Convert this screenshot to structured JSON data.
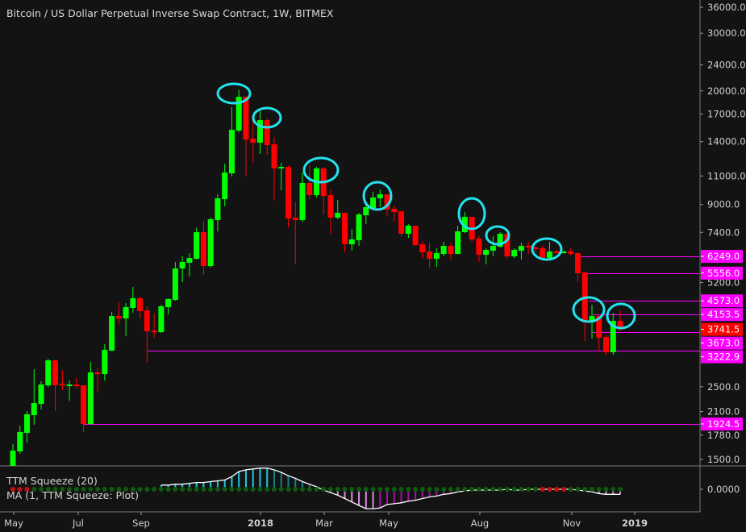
{
  "title": "Bitcoin / US Dollar Perpetual Inverse Swap Contract, 1W, BITMEX",
  "indicator": {
    "name": "TTM Squeeze (20)",
    "ma_label": "MA (1, TTM Squeeze: Plot)",
    "zero_label": "0.0000"
  },
  "colors": {
    "background": "#131313",
    "up": "#00ff00",
    "down": "#ff0000",
    "level_line": "#ff00ff",
    "last_price": "#ff0000",
    "annotation": "#22e3ee",
    "hist_pos_rising": "#1fc8dc",
    "hist_pos_falling": "#13808c",
    "hist_neg_falling": "#e08ae0",
    "hist_neg_rising": "#a312a3",
    "squeeze_off": "#0d5c0d",
    "squeeze_on": "#c41010"
  },
  "chart_data": {
    "type": "candlestick",
    "title": "Bitcoin / US Dollar Perpetual Inverse Swap Contract, 1W, BITMEX",
    "y_scale": "log",
    "ylim": [
      1450,
      36000
    ],
    "grid": false,
    "x_tick_labels": [
      "May",
      "Jul",
      "Sep",
      "2018",
      "Mar",
      "May",
      "Aug",
      "Nov",
      "2019"
    ],
    "y_tick_labels": [
      "36000.0",
      "30000.0",
      "24000.0",
      "20000.0",
      "17000.0",
      "14000.0",
      "11000.0",
      "9000.0",
      "7400.0",
      "5200.0",
      "2500.0",
      "2100.0",
      "1780.0",
      "1500.0"
    ],
    "ohlc": [
      [
        1420,
        1670,
        1400,
        1596
      ],
      [
        1587,
        1903,
        1560,
        1819
      ],
      [
        1808,
        2107,
        1689,
        2060
      ],
      [
        2048,
        2828,
        1914,
        2229
      ],
      [
        2217,
        2597,
        2131,
        2540
      ],
      [
        2525,
        3044,
        2497,
        3010
      ],
      [
        3010,
        3020,
        2107,
        2525
      ],
      [
        2554,
        2812,
        2441,
        2525
      ],
      [
        2511,
        2612,
        2268,
        2540
      ],
      [
        2540,
        2657,
        2483,
        2511
      ],
      [
        2525,
        2525,
        1819,
        1925
      ],
      [
        1925,
        2976,
        1914,
        2765
      ],
      [
        2765,
        2844,
        2400,
        2734
      ],
      [
        2734,
        3371,
        2612,
        3240
      ],
      [
        3222,
        4230,
        3222,
        4111
      ],
      [
        4111,
        4527,
        3884,
        4042
      ],
      [
        4042,
        4500,
        3568,
        4374
      ],
      [
        4350,
        5041,
        4205,
        4657
      ],
      [
        4657,
        4710,
        4041,
        4253
      ],
      [
        4277,
        4400,
        2959,
        3691
      ],
      [
        3712,
        4181,
        3528,
        3670
      ],
      [
        3670,
        4450,
        3650,
        4400
      ],
      [
        4375,
        4657,
        4157,
        4630
      ],
      [
        4604,
        6009,
        4578,
        5742
      ],
      [
        5742,
        6251,
        5215,
        6009
      ],
      [
        5975,
        6393,
        5426,
        6181
      ],
      [
        6146,
        7652,
        6111,
        7410
      ],
      [
        7410,
        8022,
        5487,
        5841
      ],
      [
        5841,
        8206,
        5775,
        8113
      ],
      [
        8066,
        9671,
        7452,
        9400
      ],
      [
        9348,
        11994,
        8882,
        11270
      ],
      [
        11206,
        17832,
        10955,
        15216
      ],
      [
        15130,
        20199,
        14950,
        19195
      ],
      [
        19195,
        19304,
        10955,
        14216
      ],
      [
        14297,
        16850,
        12062,
        13897
      ],
      [
        13897,
        17532,
        12841,
        16287
      ],
      [
        16287,
        16474,
        12767,
        13663
      ],
      [
        13741,
        14460,
        9242,
        11593
      ],
      [
        11593,
        12062,
        9949,
        11725
      ],
      [
        11725,
        11859,
        7667,
        8159
      ],
      [
        8206,
        9138,
        5908,
        8066
      ],
      [
        8066,
        11270,
        7975,
        10470
      ],
      [
        10470,
        11859,
        9348,
        9616
      ],
      [
        9616,
        11725,
        9454,
        11593
      ],
      [
        11593,
        11725,
        8393,
        9562
      ],
      [
        9616,
        9949,
        7326,
        8206
      ],
      [
        8206,
        9294,
        8113,
        8489
      ],
      [
        8489,
        8489,
        6432,
        6806
      ],
      [
        6806,
        7583,
        6505,
        7041
      ],
      [
        7001,
        8489,
        6728,
        8393
      ],
      [
        8346,
        9086,
        7842,
        8833
      ],
      [
        8783,
        9836,
        8683,
        9454
      ],
      [
        9400,
        10004,
        8833,
        9671
      ],
      [
        9671,
        9671,
        8299,
        8683
      ],
      [
        8733,
        8933,
        7977,
        8537
      ],
      [
        8586,
        8586,
        7203,
        7326
      ],
      [
        7326,
        7842,
        7122,
        7754
      ],
      [
        7754,
        7754,
        6728,
        6767
      ],
      [
        6806,
        6962,
        6146,
        6432
      ],
      [
        6468,
        6883,
        5775,
        6146
      ],
      [
        6146,
        6616,
        5808,
        6393
      ],
      [
        6357,
        6923,
        6251,
        6730
      ],
      [
        6730,
        6883,
        6111,
        6357
      ],
      [
        6357,
        7754,
        6357,
        7452
      ],
      [
        7410,
        8537,
        7368,
        8252
      ],
      [
        8252,
        8252,
        6923,
        7041
      ],
      [
        7081,
        7244,
        6009,
        6323
      ],
      [
        6323,
        6616,
        5908,
        6542
      ],
      [
        6505,
        7203,
        6251,
        6730
      ],
      [
        6692,
        7410,
        6654,
        7326
      ],
      [
        7326,
        7326,
        6146,
        6251
      ],
      [
        6251,
        6616,
        6181,
        6542
      ],
      [
        6505,
        6883,
        6111,
        6730
      ],
      [
        6730,
        6923,
        6357,
        6654
      ],
      [
        6654,
        6730,
        6432,
        6579
      ],
      [
        6616,
        6730,
        6077,
        6181
      ],
      [
        6181,
        6923,
        6146,
        6468
      ],
      [
        6468,
        6542,
        6393,
        6432
      ],
      [
        6432,
        6505,
        6393,
        6468
      ],
      [
        6468,
        6616,
        6287,
        6357
      ],
      [
        6393,
        6432,
        5215,
        5550
      ],
      [
        5581,
        5620,
        3449,
        3929
      ],
      [
        3929,
        4450,
        3508,
        4111
      ],
      [
        4111,
        4157,
        3222,
        3528
      ],
      [
        3548,
        3608,
        3132,
        3186
      ],
      [
        3186,
        4205,
        3132,
        3973
      ],
      [
        3973,
        4277,
        3712,
        3741.5
      ]
    ],
    "levels": [
      6249.0,
      5556.0,
      4573.0,
      4153.5,
      3673.0,
      3222.9,
      1924.5
    ],
    "level_labels": [
      "6249.0",
      "5556.0",
      "4573.0",
      "4153.5",
      "3673.0",
      "3222.9",
      "1924.5"
    ],
    "last_price": 3741.5,
    "last_price_label": "3741.5",
    "squeeze_momentum": [
      5,
      5,
      6,
      6,
      7,
      8,
      8,
      9,
      10,
      11,
      15,
      21,
      23,
      24,
      25,
      25,
      23,
      20,
      16,
      13,
      9,
      6,
      3,
      -1,
      -4,
      -7,
      -11,
      -15,
      -19,
      -23,
      -23,
      -22,
      -18,
      -17,
      -16,
      -14,
      -13,
      -11,
      -9,
      -8,
      -6,
      -5,
      -3,
      -2,
      -1,
      -1,
      -1,
      -1,
      -1,
      0,
      -1,
      -1,
      0,
      0,
      0,
      0,
      0,
      0,
      0,
      -1,
      -2,
      -3,
      -5,
      -6,
      -6,
      -6
    ],
    "squeeze_on_bars": [
      1,
      2,
      3,
      76,
      77,
      78,
      79
    ]
  }
}
